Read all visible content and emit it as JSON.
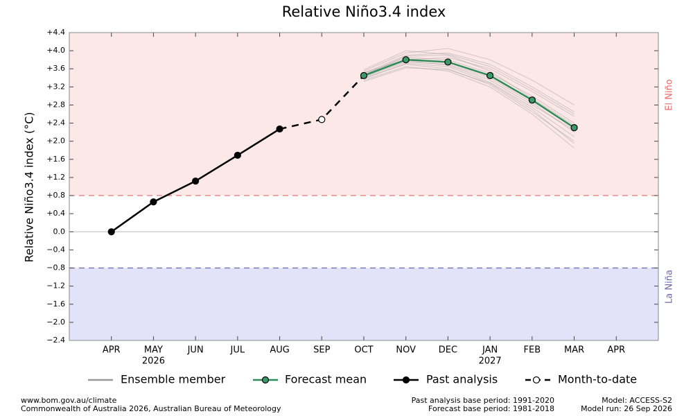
{
  "chart_data": {
    "type": "line",
    "title": "Relative Niño3.4 index",
    "y_label": "Relative Niño3.4 index (°C)",
    "categories": [
      "APR",
      "MAY",
      "JUN",
      "JUL",
      "AUG",
      "SEP",
      "OCT",
      "NOV",
      "DEC",
      "JAN",
      "FEB",
      "MAR",
      "APR"
    ],
    "year_labels": [
      null,
      "2026",
      null,
      null,
      null,
      null,
      null,
      null,
      null,
      "2027",
      null,
      null,
      null
    ],
    "ylim": [
      -2.4,
      4.4
    ],
    "yticks": [
      {
        "value": 4.4,
        "label": "+4.4"
      },
      {
        "value": 4.0,
        "label": "+4.0"
      },
      {
        "value": 3.6,
        "label": "+3.6"
      },
      {
        "value": 3.2,
        "label": "+3.2"
      },
      {
        "value": 2.8,
        "label": "+2.8"
      },
      {
        "value": 2.4,
        "label": "+2.4"
      },
      {
        "value": 2.0,
        "label": "+2.0"
      },
      {
        "value": 1.6,
        "label": "+1.6"
      },
      {
        "value": 1.2,
        "label": "+1.2"
      },
      {
        "value": 0.8,
        "label": "+0.8"
      },
      {
        "value": 0.4,
        "label": "+0.4"
      },
      {
        "value": 0,
        "label": "0.0"
      },
      {
        "value": -0.4,
        "label": "−0.4"
      },
      {
        "value": -0.8,
        "label": "−0.8"
      },
      {
        "value": -1.2,
        "label": "−1.2"
      },
      {
        "value": -1.6,
        "label": "−1.6"
      },
      {
        "value": -2.0,
        "label": "−2.0"
      },
      {
        "value": -2.4,
        "label": "−2.4"
      }
    ],
    "el_nino": {
      "label": "El Niño",
      "threshold": 0.8,
      "color": "#e86a6a",
      "fill": "#fde8e8"
    },
    "la_nina": {
      "label": "La Niña",
      "threshold": -0.8,
      "color": "#6a6aa8",
      "fill": "#e2e2fb"
    },
    "ensemble": {
      "name": "Ensemble member",
      "color": "#999999",
      "members": [
        [
          null,
          null,
          null,
          null,
          null,
          null,
          3.5,
          3.9,
          3.95,
          3.7,
          3.2,
          2.65,
          null
        ],
        [
          null,
          null,
          null,
          null,
          null,
          null,
          3.4,
          3.7,
          3.6,
          3.25,
          2.65,
          2.0,
          null
        ],
        [
          null,
          null,
          null,
          null,
          null,
          null,
          3.55,
          3.95,
          4.05,
          3.8,
          3.35,
          2.8,
          null
        ],
        [
          null,
          null,
          null,
          null,
          null,
          null,
          3.35,
          3.65,
          3.55,
          3.2,
          2.6,
          1.85,
          null
        ],
        [
          null,
          null,
          null,
          null,
          null,
          null,
          3.48,
          3.85,
          3.8,
          3.5,
          3.0,
          2.4,
          null
        ],
        [
          null,
          null,
          null,
          null,
          null,
          null,
          3.42,
          3.75,
          3.7,
          3.4,
          2.85,
          2.2,
          null
        ],
        [
          null,
          null,
          null,
          null,
          null,
          null,
          3.52,
          3.8,
          3.85,
          3.6,
          3.1,
          2.55,
          null
        ],
        [
          null,
          null,
          null,
          null,
          null,
          null,
          3.38,
          3.72,
          3.65,
          3.3,
          2.75,
          2.1,
          null
        ],
        [
          null,
          null,
          null,
          null,
          null,
          null,
          3.46,
          3.88,
          3.9,
          3.55,
          2.95,
          2.35,
          null
        ],
        [
          null,
          null,
          null,
          null,
          null,
          null,
          3.44,
          3.78,
          3.68,
          3.35,
          2.8,
          2.25,
          null
        ],
        [
          null,
          null,
          null,
          null,
          null,
          null,
          3.58,
          4.0,
          3.92,
          3.65,
          3.15,
          2.6,
          null
        ],
        [
          null,
          null,
          null,
          null,
          null,
          null,
          3.32,
          3.62,
          3.58,
          3.28,
          2.7,
          1.95,
          null
        ]
      ]
    },
    "series": [
      {
        "name": "Forecast mean",
        "color": "#2e8b57",
        "marker_fill": "#3a9a6a",
        "style": "solid",
        "values": [
          null,
          null,
          null,
          null,
          null,
          null,
          3.45,
          3.8,
          3.75,
          3.45,
          2.91,
          2.3,
          null
        ]
      },
      {
        "name": "Past analysis",
        "color": "#000000",
        "marker_fill": "#000000",
        "style": "solid",
        "values": [
          0.0,
          0.66,
          1.12,
          1.69,
          2.27,
          null,
          null,
          null,
          null,
          null,
          null,
          null,
          null
        ]
      },
      {
        "name": "Month-to-date",
        "color": "#000000",
        "marker_fill": "#ffffff",
        "style": "dashed",
        "values": [
          null,
          null,
          null,
          null,
          null,
          2.48,
          null,
          null,
          null,
          null,
          null,
          null,
          null
        ]
      }
    ],
    "footer": {
      "left": [
        "www.bom.gov.au/climate",
        "Commonwealth of Australia 2026, Australian Bureau of Meteorology"
      ],
      "middle": [
        "Past analysis base period: 1991-2020",
        "Forecast base period: 1981-2018"
      ],
      "right": [
        "Model: ACCESS-S2",
        "Model run: 26 Sep 2026"
      ]
    }
  }
}
